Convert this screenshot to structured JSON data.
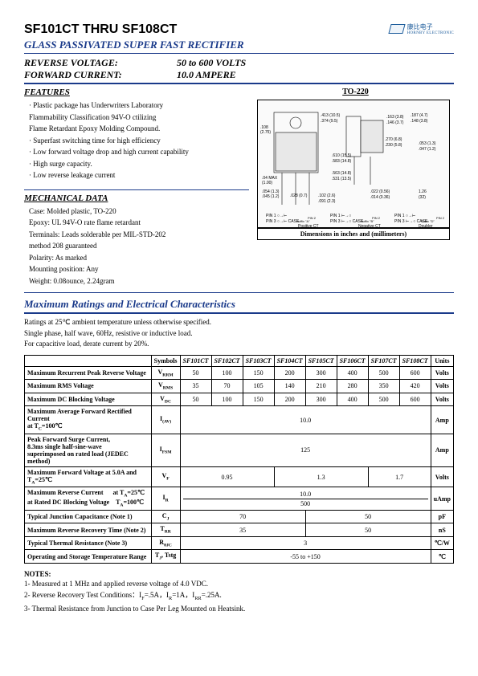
{
  "header": {
    "title": "SF101CT THRU SF108CT",
    "subtitle": "GLASS PASSIVATED SUPER FAST RECTIFIER",
    "reverse_label": "REVERSE VOLTAGE:",
    "reverse_value": "50 to 600 VOLTS",
    "forward_label": "FORWARD CURRENT:",
    "forward_value": "10.0 AMPERE"
  },
  "logo": {
    "brand": "HORNBY ELECTRONIC",
    "cn": "康比电子"
  },
  "features": {
    "heading": "FEATURES",
    "items": [
      "· Plastic package has Underwriters Laboratory",
      "  Flammability Classification 94V-O ctilizing",
      "  Flame Retardant Epoxy Molding Compound.",
      "· Superfast switching time for high efficiency",
      "· Low forward voltage drop and high current capability",
      "· High surge capacity.",
      "· Low reverse leakage current"
    ]
  },
  "mechanical": {
    "heading": "MECHANICAL DATA",
    "lines": [
      "Case: Molded plastic, TO-220",
      "Epoxy: UL 94V-O rate flame retardant",
      "Terminals: Leads solderable per MIL-STD-202",
      "method 208 guaranteed",
      "Polarity: As marked",
      "Mounting position: Any",
      "Weight: 0.08ounce, 2.24gram"
    ]
  },
  "package": {
    "title": "TO-220",
    "dim_caption": "Dimensions in inches and (millimeters)",
    "pins": "PIN 1 ○→⊢  PIN 3 ○→⊢ CASE PIN 2   Positive CT Suffix \"A\"   Negative CT Suffix \"B\"   Doubler Suffix \"D\""
  },
  "ratings": {
    "heading": "Maximum Ratings and Electrical Characteristics",
    "notes": [
      "Ratings at 25℃ ambient temperature unless otherwise specified.",
      "Single phase, half wave, 60Hz, resistive or inductive load.",
      "For capacitive load, derate current by 20%."
    ]
  },
  "table": {
    "head": [
      "",
      "Symbols",
      "SF101CT",
      "SF102CT",
      "SF103CT",
      "SF104CT",
      "SF105CT",
      "SF106CT",
      "SF107CT",
      "SF108CT",
      "Units"
    ],
    "rows": [
      {
        "param": "Maximum Recurrent Peak Reverse Voltage",
        "sym": "V<sub>RRM</sub>",
        "v": [
          "50",
          "100",
          "150",
          "200",
          "300",
          "400",
          "500",
          "600"
        ],
        "unit": "Volts"
      },
      {
        "param": "Maximum RMS Voltage",
        "sym": "V<sub>RMS</sub>",
        "v": [
          "35",
          "70",
          "105",
          "140",
          "210",
          "280",
          "350",
          "420"
        ],
        "unit": "Volts"
      },
      {
        "param": "Maximum DC Blocking Voltage",
        "sym": "V<sub>DC</sub>",
        "v": [
          "50",
          "100",
          "150",
          "200",
          "300",
          "400",
          "500",
          "600"
        ],
        "unit": "Volts"
      },
      {
        "param": "Maximum Average Forward Rectified Current<br>at T<sub>C</sub>=100℃",
        "sym": "I<sub>(AV)</sub>",
        "span": "10.0",
        "unit": "Amp"
      },
      {
        "param": "Peak Forward Surge Current,<br>8.3ms single half-sine-wave<br>superimposed on rated load (JEDEC method)",
        "sym": "I<sub>FSM</sub>",
        "span": "125",
        "unit": "Amp"
      },
      {
        "param": "Maximum Forward Voltage at 5.0A and T<sub>A</sub>=25℃",
        "sym": "V<sub>F</sub>",
        "groups": [
          {
            "s": 3,
            "v": "0.95"
          },
          {
            "s": 3,
            "v": "1.3"
          },
          {
            "s": 2,
            "v": "1.7"
          }
        ],
        "unit": "Volts"
      },
      {
        "param": "Maximum Reverse Current &nbsp;&nbsp;&nbsp;&nbsp; at T<sub>A</sub>=25℃<br>at Rated DC Blocking Voltage &nbsp;&nbsp; T<sub>A</sub>=100℃",
        "sym": "I<sub>R</sub>",
        "stack": [
          "10.0",
          "500"
        ],
        "unit": "uAmp"
      },
      {
        "param": "Typical Junction Capacitance (Note 1)",
        "sym": "C<sub>J</sub>",
        "groups": [
          {
            "s": 4,
            "v": "70"
          },
          {
            "s": 4,
            "v": "50"
          }
        ],
        "unit": "pF"
      },
      {
        "param": "Maximum Reverse Recovery Time (Note 2)",
        "sym": "T<sub>RR</sub>",
        "groups": [
          {
            "s": 4,
            "v": "35"
          },
          {
            "s": 4,
            "v": "50"
          }
        ],
        "unit": "nS"
      },
      {
        "param": "Typical Thermal Resistance (Note 3)",
        "sym": "R<sub>θJC</sub>",
        "span": "3",
        "unit": "℃/W"
      },
      {
        "param": "Operating and Storage Temperature Range",
        "sym": "T<sub>J</sub>, Tstg",
        "span": "-55 to +150",
        "unit": "℃"
      }
    ]
  },
  "notes": {
    "heading": "NOTES:",
    "items": [
      "1- Measured at 1 MHz and applied reverse voltage of 4.0 VDC.",
      "2- Reverse Recovery Test Conditions：I<sub>F</sub>=.5A，I<sub>R</sub>=1A，I<sub>RR</sub>=.25A.",
      "3- Thermal Resistance from Junction to Case Per Leg Mounted on Heatsink."
    ]
  }
}
